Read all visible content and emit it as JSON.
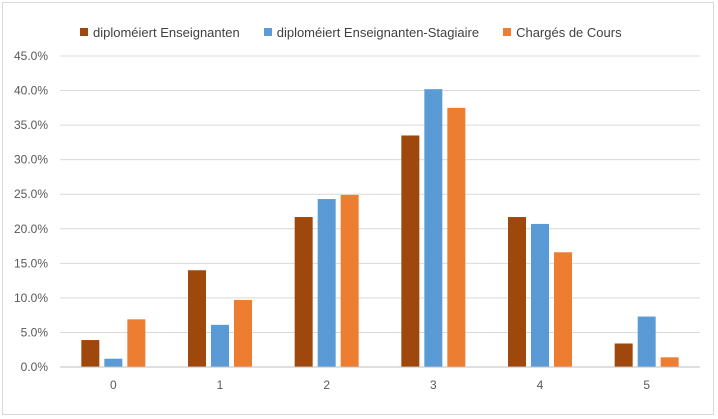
{
  "chart_data": {
    "type": "bar",
    "categories": [
      "0",
      "1",
      "2",
      "3",
      "4",
      "5"
    ],
    "series": [
      {
        "name": "diploméiert Enseignanten",
        "color": "#9e480e",
        "values": [
          3.9,
          14.0,
          21.7,
          33.5,
          21.7,
          3.4
        ]
      },
      {
        "name": "diploméiert Enseignanten-Stagiaire",
        "color": "#5b9bd5",
        "values": [
          1.2,
          6.1,
          24.3,
          40.2,
          20.7,
          7.3
        ]
      },
      {
        "name": "Chargés de Cours",
        "color": "#ed7d31",
        "values": [
          6.9,
          9.7,
          24.9,
          37.5,
          16.6,
          1.4
        ]
      }
    ],
    "y_ticks": [
      "0.0%",
      "5.0%",
      "10.0%",
      "15.0%",
      "20.0%",
      "25.0%",
      "30.0%",
      "35.0%",
      "40.0%",
      "45.0%"
    ],
    "ylim": [
      0,
      45
    ],
    "grid": true,
    "legend_position": "top-left"
  }
}
